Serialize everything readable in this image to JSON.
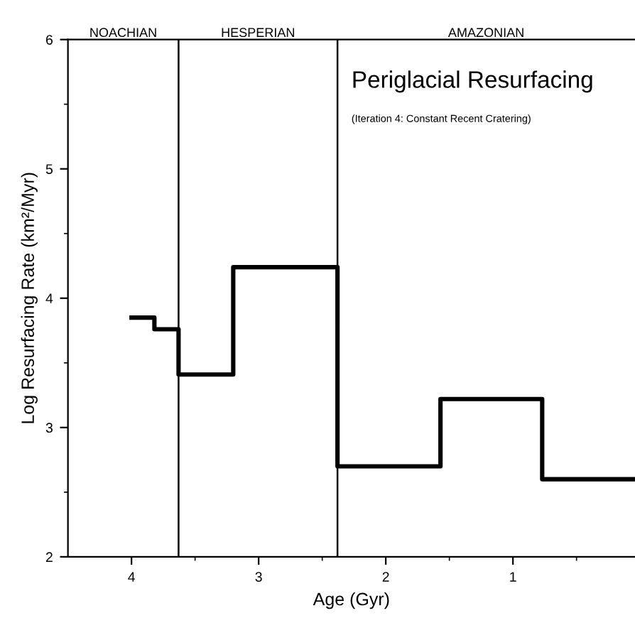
{
  "chart_data": {
    "type": "step",
    "title": "Periglacial Resurfacing",
    "subtitle": "(Iteration 4: Constant Recent Cratering)",
    "xlabel": "Age (Gyr)",
    "ylabel": "Log Resurfacing Rate (km²/Myr)",
    "x": [
      4.0,
      3.82,
      3.63,
      3.2,
      2.38,
      1.57,
      0.77,
      0.04
    ],
    "series": [
      {
        "color": "#000000",
        "values": [
          3.85,
          3.76,
          3.41,
          4.24,
          2.7,
          3.22,
          2.6,
          2.6
        ]
      }
    ],
    "xlim": [
      4.5,
      0.04
    ],
    "xticks": [
      4,
      3,
      2,
      1
    ],
    "ylim": [
      2,
      6
    ],
    "yticks": [
      2,
      3,
      4,
      5,
      6
    ],
    "ref_lines": [
      {
        "axis": "x",
        "value": 3.63,
        "color": "#000000"
      },
      {
        "axis": "x",
        "value": 2.38,
        "color": "#000000"
      }
    ],
    "annotations": [
      "NOACHIAN",
      "HESPERIAN",
      "AMAZONIAN"
    ],
    "grid": false,
    "legend": false,
    "marker": "none",
    "line_style": "solid"
  }
}
